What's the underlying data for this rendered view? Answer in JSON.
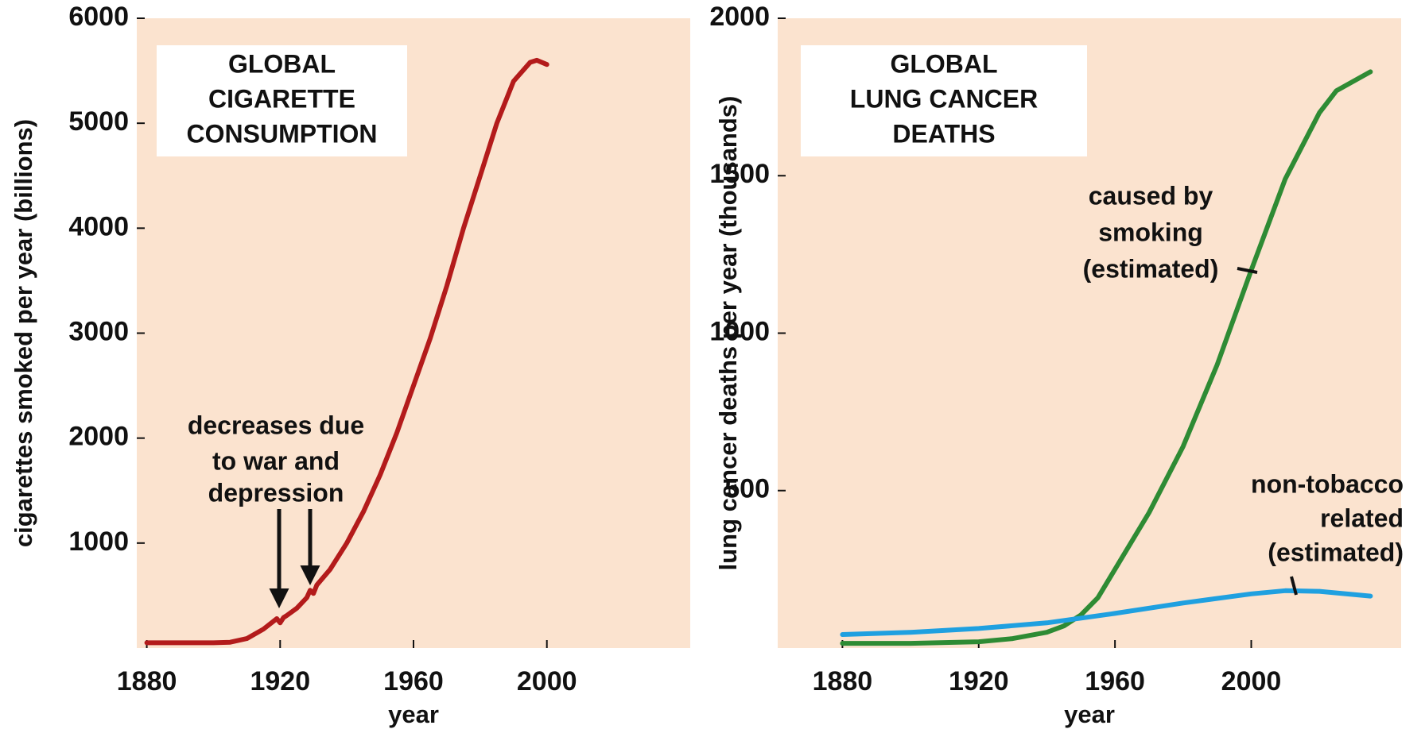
{
  "chart_data": [
    {
      "type": "line",
      "title": [
        "GLOBAL",
        "CIGARETTE",
        "CONSUMPTION"
      ],
      "x_label": "year",
      "y_label": "cigarettes smoked per year (billions)",
      "xlim": [
        1877,
        2043
      ],
      "xticks": [
        1880,
        1920,
        1960,
        2000
      ],
      "ylim": [
        0,
        6000
      ],
      "yticks": [
        1000,
        2000,
        3000,
        4000,
        5000,
        6000
      ],
      "background": "#fbe3cf",
      "annotation": [
        "decreases due",
        "to war and",
        "depression"
      ],
      "series": [
        {
          "color": "#b31b1b",
          "x": [
            1880,
            1900,
            1905,
            1910,
            1915,
            1919,
            1920,
            1921,
            1922,
            1925,
            1928,
            1929,
            1930,
            1931,
            1935,
            1940,
            1945,
            1950,
            1955,
            1960,
            1965,
            1970,
            1975,
            1980,
            1985,
            1990,
            1995,
            1997,
            2000
          ],
          "values": [
            50,
            50,
            55,
            90,
            180,
            280,
            240,
            290,
            310,
            380,
            480,
            550,
            520,
            600,
            750,
            1000,
            1300,
            1650,
            2050,
            2500,
            2950,
            3450,
            4000,
            4500,
            5000,
            5400,
            5580,
            5600,
            5560
          ]
        }
      ]
    },
    {
      "type": "line",
      "title": [
        "GLOBAL",
        "LUNG CANCER",
        "DEATHS"
      ],
      "x_label": "year",
      "y_label": "lung cancer deaths per year (thousands)",
      "xlim": [
        1861,
        2044
      ],
      "xticks": [
        1880,
        1920,
        1960,
        2000
      ],
      "ylim": [
        0,
        2000
      ],
      "yticks": [
        500,
        1000,
        1500,
        2000
      ],
      "background": "#fbe3cf",
      "series": [
        {
          "color": "#2e8b34",
          "label": [
            "caused by",
            "smoking",
            "(estimated)"
          ],
          "x": [
            1880,
            1900,
            1920,
            1930,
            1940,
            1945,
            1950,
            1955,
            1960,
            1970,
            1980,
            1990,
            2000,
            2010,
            2020,
            2025,
            2035
          ],
          "values": [
            15,
            15,
            20,
            30,
            50,
            70,
            105,
            160,
            250,
            430,
            640,
            900,
            1200,
            1490,
            1700,
            1770,
            1830
          ]
        },
        {
          "color": "#1fa0e0",
          "label": [
            "non-tobacco",
            "related",
            "(estimated)"
          ],
          "x": [
            1880,
            1900,
            1920,
            1940,
            1960,
            1980,
            2000,
            2010,
            2020,
            2035
          ],
          "values": [
            43,
            50,
            62,
            80,
            110,
            143,
            172,
            182,
            180,
            165
          ]
        }
      ]
    }
  ]
}
